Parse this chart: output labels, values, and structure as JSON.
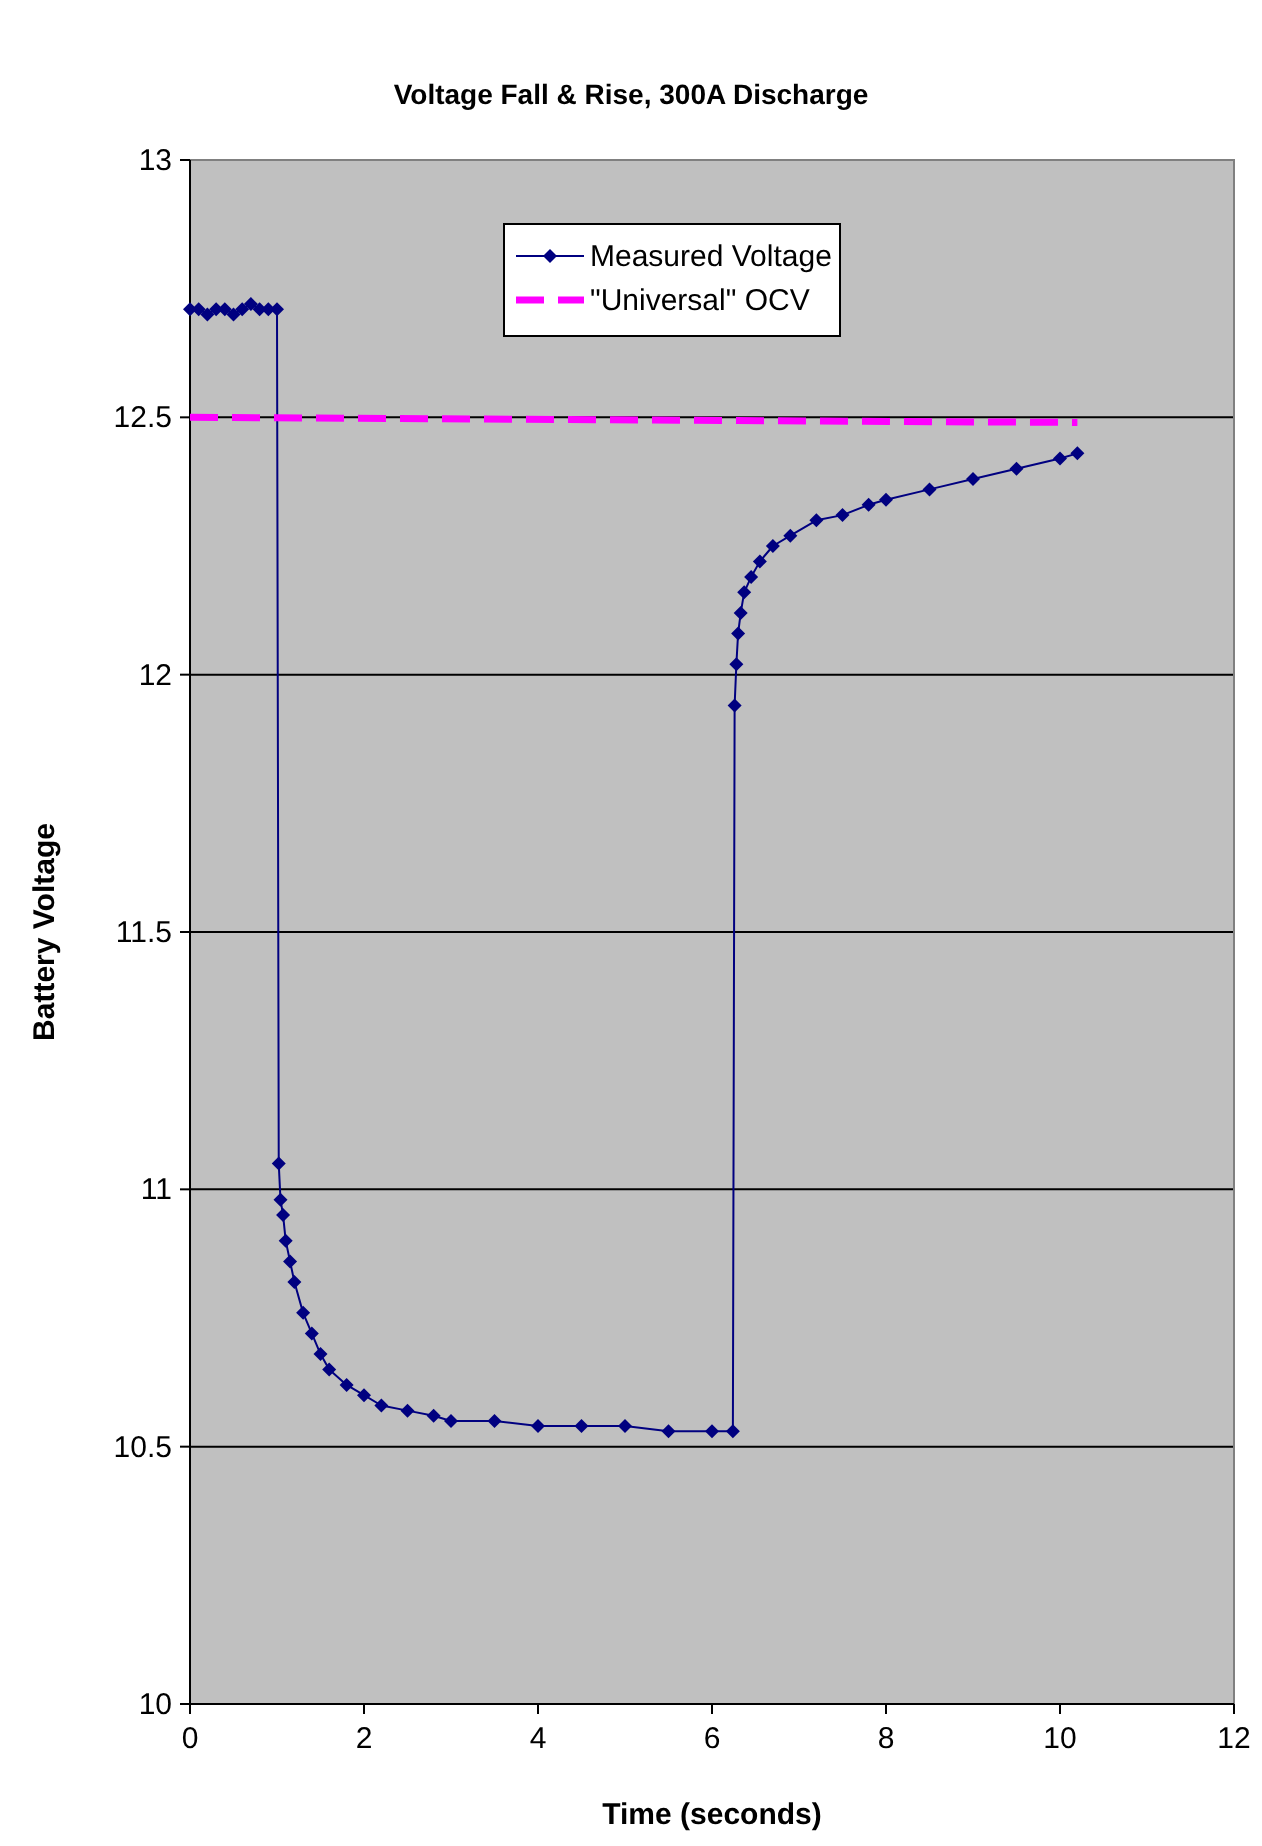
{
  "chart_data": {
    "type": "line",
    "title": "Voltage Fall & Rise, 300A Discharge",
    "xlabel": "Time (seconds)",
    "ylabel": "Battery Voltage",
    "xlim": [
      0,
      12
    ],
    "xticks": [
      0,
      2,
      4,
      6,
      8,
      10,
      12
    ],
    "ylim": [
      10,
      13
    ],
    "yticks": [
      10,
      10.5,
      11,
      11.5,
      12,
      12.5,
      13
    ],
    "grid": "y",
    "legend": "top",
    "series": [
      {
        "name": "Measured Voltage",
        "color": "#000080",
        "marker": "diamond",
        "line_style": "solid",
        "x": [
          0,
          0.1,
          0.2,
          0.3,
          0.4,
          0.5,
          0.6,
          0.7,
          0.8,
          0.9,
          1.0,
          1.02,
          1.04,
          1.07,
          1.1,
          1.15,
          1.2,
          1.3,
          1.4,
          1.5,
          1.6,
          1.8,
          2.0,
          2.2,
          2.5,
          2.8,
          3.0,
          3.5,
          4.0,
          4.5,
          5.0,
          5.5,
          6.0,
          6.24,
          6.26,
          6.28,
          6.3,
          6.33,
          6.37,
          6.45,
          6.55,
          6.7,
          6.9,
          7.2,
          7.5,
          7.8,
          8.0,
          8.5,
          9.0,
          9.5,
          10.0,
          10.2
        ],
        "values": [
          12.71,
          12.71,
          12.7,
          12.71,
          12.71,
          12.7,
          12.71,
          12.72,
          12.71,
          12.71,
          12.71,
          11.05,
          10.98,
          10.95,
          10.9,
          10.86,
          10.82,
          10.76,
          10.72,
          10.68,
          10.65,
          10.62,
          10.6,
          10.58,
          10.57,
          10.56,
          10.55,
          10.55,
          10.54,
          10.54,
          10.54,
          10.53,
          10.53,
          10.53,
          11.94,
          12.02,
          12.08,
          12.12,
          12.16,
          12.19,
          12.22,
          12.25,
          12.27,
          12.3,
          12.31,
          12.33,
          12.34,
          12.36,
          12.38,
          12.4,
          12.42,
          12.43
        ]
      },
      {
        "name": "\"Universal\" OCV",
        "color": "#ff00ff",
        "marker": "none",
        "line_style": "dashed",
        "x": [
          0,
          10.2
        ],
        "values": [
          12.5,
          12.49
        ]
      }
    ]
  }
}
